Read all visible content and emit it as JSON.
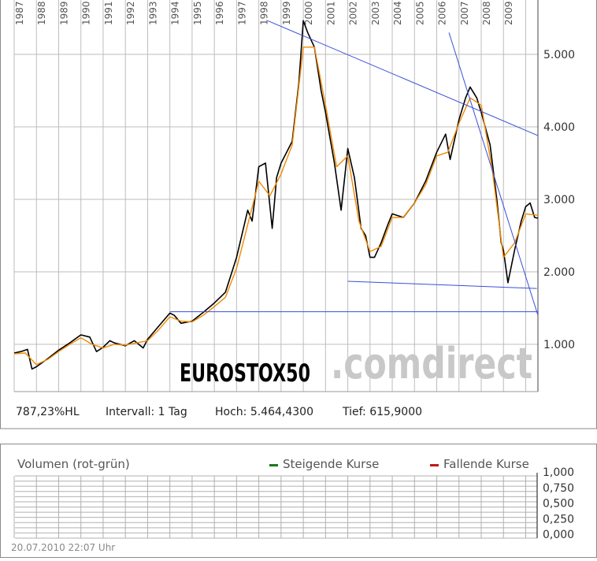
{
  "chart_data": [
    {
      "type": "line",
      "title": "EUROSTOX50",
      "watermark": ".comdirect",
      "x_tick_labels": [
        "1987",
        "1988",
        "1989",
        "1990",
        "1991",
        "1992",
        "1993",
        "1994",
        "1995",
        "1996",
        "1997",
        "1998",
        "1999",
        "2000",
        "2001",
        "2002",
        "2003",
        "2004",
        "2005",
        "2006",
        "2007",
        "2008",
        "2009"
      ],
      "y_tick_labels": [
        "1.000",
        "2.000",
        "3.000",
        "4.000",
        "5.000"
      ],
      "y_ticks": [
        1000,
        2000,
        3000,
        4000,
        5000
      ],
      "xlim": [
        1987.0,
        2010.55
      ],
      "ylim": [
        420,
        5900
      ],
      "grid": true,
      "series": [
        {
          "color": "#000000",
          "x": [
            1987.0,
            1987.3,
            1987.6,
            1987.8,
            1988.0,
            1988.5,
            1989.0,
            1989.5,
            1990.0,
            1990.4,
            1990.7,
            1991.0,
            1991.3,
            1991.5,
            1992.0,
            1992.4,
            1992.8,
            1993.0,
            1993.5,
            1994.0,
            1994.2,
            1994.5,
            1995.0,
            1995.5,
            1996.0,
            1996.5,
            1997.0,
            1997.5,
            1997.7,
            1998.0,
            1998.3,
            1998.6,
            1998.8,
            1999.0,
            1999.5,
            1999.8,
            2000.0,
            2000.2,
            2000.5,
            2000.8,
            2001.0,
            2001.4,
            2001.7,
            2002.0,
            2002.3,
            2002.6,
            2002.8,
            2003.0,
            2003.2,
            2003.5,
            2003.8,
            2004.0,
            2004.5,
            2005.0,
            2005.5,
            2006.0,
            2006.4,
            2006.6,
            2007.0,
            2007.3,
            2007.5,
            2007.8,
            2008.0,
            2008.4,
            2008.7,
            2008.9,
            2009.0,
            2009.2,
            2009.5,
            2009.8,
            2010.0,
            2010.2,
            2010.4,
            2010.55
          ],
          "y": [
            880,
            900,
            930,
            660,
            690,
            800,
            920,
            1020,
            1130,
            1100,
            900,
            960,
            1050,
            1020,
            980,
            1050,
            950,
            1070,
            1250,
            1430,
            1400,
            1290,
            1320,
            1440,
            1570,
            1720,
            2200,
            2850,
            2700,
            3450,
            3500,
            2600,
            3300,
            3500,
            3800,
            4600,
            5464,
            5300,
            5100,
            4500,
            4200,
            3500,
            2850,
            3700,
            3300,
            2600,
            2500,
            2200,
            2200,
            2400,
            2650,
            2800,
            2750,
            2950,
            3250,
            3650,
            3900,
            3550,
            4100,
            4400,
            4550,
            4400,
            4200,
            3750,
            3000,
            2400,
            2300,
            1850,
            2300,
            2700,
            2900,
            2950,
            2750,
            2740
          ]
        },
        {
          "color": "#f08a00",
          "x": [
            1987.0,
            1987.5,
            1988.0,
            1988.5,
            1989.0,
            1989.5,
            1990.0,
            1990.5,
            1991.0,
            1991.5,
            1992.0,
            1992.5,
            1993.0,
            1993.5,
            1994.0,
            1994.5,
            1995.0,
            1995.5,
            1996.0,
            1996.5,
            1997.0,
            1997.5,
            1998.0,
            1998.5,
            1999.0,
            1999.5,
            2000.0,
            2000.5,
            2001.0,
            2001.5,
            2002.0,
            2002.5,
            2003.0,
            2003.5,
            2004.0,
            2004.5,
            2005.0,
            2005.5,
            2006.0,
            2006.5,
            2007.0,
            2007.5,
            2008.0,
            2008.5,
            2009.0,
            2009.5,
            2010.0,
            2010.55
          ],
          "y": [
            870,
            880,
            720,
            790,
            900,
            1000,
            1090,
            1000,
            950,
            1000,
            990,
            1020,
            1050,
            1200,
            1380,
            1320,
            1310,
            1400,
            1520,
            1650,
            2050,
            2650,
            3250,
            3050,
            3350,
            3750,
            5100,
            5100,
            4300,
            3450,
            3600,
            2700,
            2280,
            2350,
            2750,
            2750,
            2950,
            3200,
            3600,
            3650,
            4050,
            4400,
            4300,
            3400,
            2200,
            2400,
            2800,
            2780
          ]
        }
      ],
      "trendlines": [
        {
          "from": [
            1998.4,
            5464
          ],
          "to": [
            2010.55,
            3880
          ]
        },
        {
          "from": [
            2006.55,
            5300
          ],
          "to": [
            2010.55,
            1400
          ]
        },
        {
          "from": [
            2002.0,
            1870
          ],
          "to": [
            2010.5,
            1770
          ]
        },
        {
          "from": [
            1994.0,
            1450
          ],
          "to": [
            2010.55,
            1450
          ]
        }
      ],
      "stats": {
        "hl": "787,23%HL",
        "interval": "Intervall: 1 Tag",
        "high": "Hoch: 5.464,4300",
        "low": "Tief: 615,9000"
      }
    },
    {
      "type": "bar",
      "title": "Volumen (rot-grün)",
      "legend": [
        {
          "label": "Steigende Kurse",
          "color": "#1a7a1a"
        },
        {
          "label": "Fallende Kurse",
          "color": "#c01818"
        }
      ],
      "y_tick_labels": [
        "1,000",
        "0,750",
        "0,500",
        "0,250",
        "0,000"
      ],
      "ylim": [
        0,
        1
      ],
      "values": [],
      "timestamp": "20.07.2010 22:07 Uhr"
    }
  ]
}
